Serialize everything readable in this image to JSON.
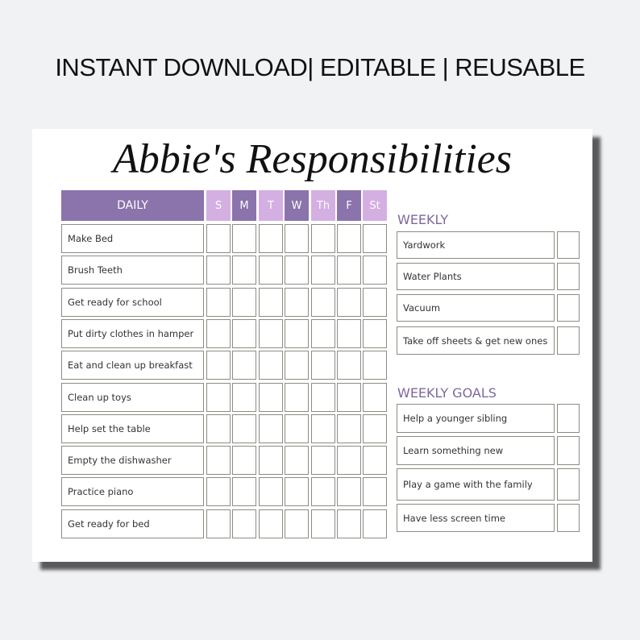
{
  "banner": "INSTANT DOWNLOAD| EDITABLE | REUSABLE",
  "title": "Abbie's Responsibilities",
  "colors": {
    "dark": "#8b73ab",
    "light": "#d4afe2"
  },
  "daily": {
    "header": "DAILY",
    "days": [
      "S",
      "M",
      "T",
      "W",
      "Th",
      "F",
      "St"
    ],
    "items": [
      "Make Bed",
      "Brush Teeth",
      "Get ready for school",
      "Put dirty clothes in hamper",
      "Eat and clean up breakfast",
      "Clean up toys",
      "Help set the table",
      "Empty the dishwasher",
      "Practice piano",
      "Get ready for bed"
    ]
  },
  "weekly": {
    "header": "WEEKLY",
    "items": [
      "Yardwork",
      "Water Plants",
      "Vacuum",
      "Take off sheets & get new ones"
    ]
  },
  "goals": {
    "header": "WEEKLY GOALS",
    "items": [
      "Help a younger sibling",
      "Learn something new",
      "Play a game with the family",
      "Have less screen time"
    ]
  }
}
